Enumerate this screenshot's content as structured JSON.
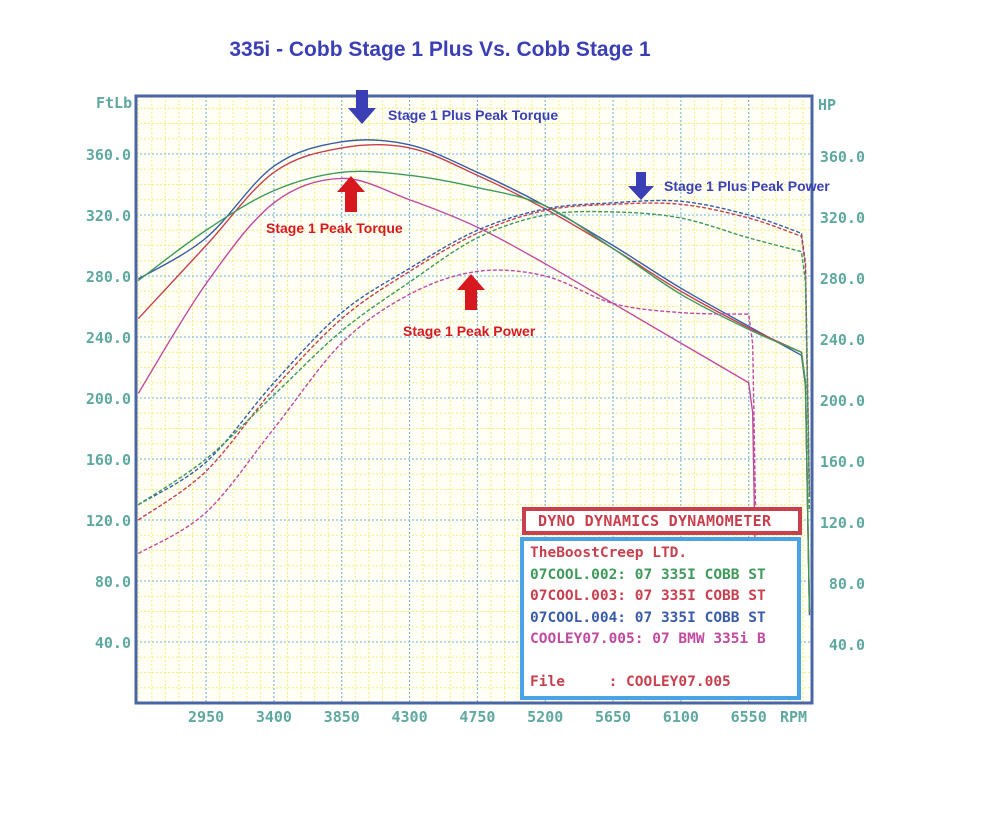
{
  "title": "335i - Cobb Stage 1 Plus Vs. Cobb Stage 1",
  "axes": {
    "left_unit": "FtLb",
    "right_unit": "HP",
    "x_unit": "RPM",
    "y_ticks": [
      "360.0",
      "320.0",
      "280.0",
      "240.0",
      "200.0",
      "160.0",
      "120.0",
      "80.0",
      "40.0"
    ],
    "x_ticks": [
      "2950",
      "3400",
      "3850",
      "4300",
      "4750",
      "5200",
      "5650",
      "6100",
      "6550"
    ]
  },
  "annotations": {
    "s1p_torque": "Stage 1 Plus Peak Torque",
    "s1p_power": "Stage 1 Plus Peak Power",
    "s1_torque": "Stage 1 Peak Torque",
    "s1_power": "Stage 1 Peak Power"
  },
  "legend": {
    "header": "DYNO DYNAMICS DYNAMOMETER",
    "company": "TheBoostCreep LTD.",
    "runs": [
      {
        "text": "07COOL.002: 07 335I COBB ST",
        "color": "#3f9a5a"
      },
      {
        "text": "07COOL.003: 07 335I COBB ST",
        "color": "#c8404e"
      },
      {
        "text": "07COOL.004: 07 335I COBB ST",
        "color": "#3a5ca8"
      },
      {
        "text": "COOLEY07.005: 07 BMW 335i B",
        "color": "#c04aa0"
      }
    ],
    "file_label": "File     : COOLEY07.005"
  },
  "colors": {
    "title": "#3a3fb5",
    "annotation_blue": "#3a3fb5",
    "annotation_red": "#d7191f",
    "axis_text": "#5fa8a0",
    "frame": "#4a64a8",
    "grid_major": "#6fb0dc",
    "grid_minor": "#f2ee80"
  },
  "chart_data": {
    "type": "line",
    "title": "335i - Cobb Stage 1 Plus Vs. Cobb Stage 1",
    "xlabel": "RPM",
    "ylabel": "FtLb",
    "ylabel_right": "HP",
    "xlim": [
      2485,
      6970
    ],
    "ylim": [
      0,
      400
    ],
    "grid": true,
    "legend_position": "bottom-right",
    "x": [
      2500,
      2950,
      3400,
      3850,
      4300,
      4750,
      5200,
      5650,
      6100,
      6550,
      6900
    ],
    "series": [
      {
        "name": "07COOL.004 Torque (Stage 1 Plus)",
        "unit": "FtLb",
        "style": "solid",
        "color": "#3a5ca8",
        "values": [
          278,
          305,
          352,
          368,
          366,
          348,
          326,
          300,
          272,
          247,
          228
        ]
      },
      {
        "name": "07COOL.003 Torque",
        "unit": "FtLb",
        "style": "solid",
        "color": "#c8404e",
        "values": [
          252,
          300,
          348,
          364,
          364,
          346,
          324,
          298,
          270,
          246,
          230
        ]
      },
      {
        "name": "07COOL.002 Torque",
        "unit": "FtLb",
        "style": "solid",
        "color": "#3f9a5a",
        "values": [
          277,
          310,
          336,
          348,
          346,
          338,
          326,
          298,
          268,
          245,
          230
        ]
      },
      {
        "name": "COOLEY07.005 Torque (Stage 1)",
        "unit": "FtLb",
        "style": "solid",
        "color": "#c04aa0",
        "values": [
          203,
          275,
          328,
          344,
          330,
          312,
          288,
          262,
          236,
          210,
          null
        ]
      },
      {
        "name": "07COOL.004 Power (Stage 1 Plus)",
        "unit": "HP",
        "style": "dashed",
        "color": "#3a5ca8",
        "values": [
          130,
          158,
          210,
          256,
          285,
          310,
          324,
          328,
          329,
          320,
          308
        ]
      },
      {
        "name": "07COOL.003 Power",
        "unit": "HP",
        "style": "dashed",
        "color": "#c8404e",
        "values": [
          120,
          152,
          206,
          252,
          283,
          308,
          323,
          327,
          327,
          318,
          306
        ]
      },
      {
        "name": "07COOL.002 Power",
        "unit": "HP",
        "style": "dashed",
        "color": "#3f9a5a",
        "values": [
          130,
          160,
          202,
          244,
          276,
          305,
          320,
          322,
          318,
          305,
          296
        ]
      },
      {
        "name": "COOLEY07.005 Power (Stage 1)",
        "unit": "HP",
        "style": "dashed",
        "color": "#c04aa0",
        "values": [
          98,
          125,
          180,
          236,
          268,
          283,
          280,
          262,
          256,
          255,
          null
        ]
      }
    ],
    "peaks": {
      "stage1_plus_torque": {
        "rpm": 4000,
        "value": 372
      },
      "stage1_plus_power": {
        "rpm": 6000,
        "value": 330
      },
      "stage1_torque": {
        "rpm": 3950,
        "value": 345
      },
      "stage1_power": {
        "rpm": 4700,
        "value": 284
      }
    }
  }
}
